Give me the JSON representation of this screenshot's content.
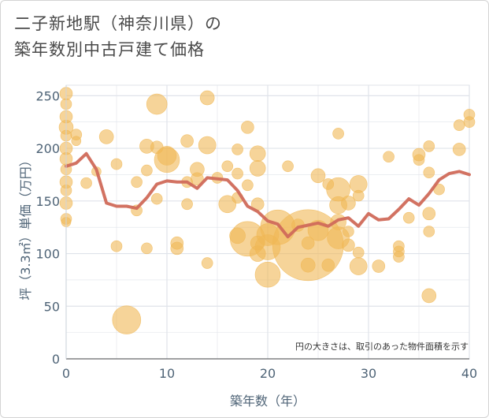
{
  "title": "二子新地駅（神奈川県）の\n築年数別中古戸建て価格",
  "colors": {
    "bubble": "#f0b855",
    "line": "#d06a5a",
    "grid": "#dfe3ea",
    "background": "#ffffff"
  },
  "chart_data": {
    "type": "scatter",
    "title": "二子新地駅（神奈川県）の築年数別中古戸建て価格",
    "xlabel": "築年数（年）",
    "ylabel": "坪（3.3㎡）単価（万円）",
    "xlim": [
      0,
      40
    ],
    "ylim": [
      0,
      260
    ],
    "xticks": [
      0,
      10,
      20,
      30,
      40
    ],
    "yticks": [
      0,
      50,
      100,
      150,
      200,
      250
    ],
    "grid": true,
    "annotation": "円の大きさは、取引のあった物件面積を示す",
    "bubbles": [
      {
        "x": 0,
        "y": 252,
        "s": 8
      },
      {
        "x": 0,
        "y": 242,
        "s": 7
      },
      {
        "x": 0,
        "y": 230,
        "s": 8
      },
      {
        "x": 0,
        "y": 220,
        "s": 9
      },
      {
        "x": 0,
        "y": 212,
        "s": 7
      },
      {
        "x": 0,
        "y": 200,
        "s": 8
      },
      {
        "x": 0,
        "y": 190,
        "s": 8
      },
      {
        "x": 0,
        "y": 180,
        "s": 7
      },
      {
        "x": 0,
        "y": 168,
        "s": 8
      },
      {
        "x": 0,
        "y": 160,
        "s": 7
      },
      {
        "x": 0,
        "y": 148,
        "s": 8
      },
      {
        "x": 0,
        "y": 133,
        "s": 7
      },
      {
        "x": 0,
        "y": 130,
        "s": 6
      },
      {
        "x": 1,
        "y": 213,
        "s": 7
      },
      {
        "x": 1,
        "y": 207,
        "s": 6
      },
      {
        "x": 2,
        "y": 167,
        "s": 7
      },
      {
        "x": 3,
        "y": 178,
        "s": 6
      },
      {
        "x": 4,
        "y": 211,
        "s": 9
      },
      {
        "x": 5,
        "y": 185,
        "s": 7
      },
      {
        "x": 5,
        "y": 107,
        "s": 7
      },
      {
        "x": 6,
        "y": 37,
        "s": 18
      },
      {
        "x": 7,
        "y": 168,
        "s": 7
      },
      {
        "x": 7,
        "y": 141,
        "s": 7
      },
      {
        "x": 8,
        "y": 202,
        "s": 9
      },
      {
        "x": 8,
        "y": 179,
        "s": 7
      },
      {
        "x": 8,
        "y": 105,
        "s": 7
      },
      {
        "x": 9,
        "y": 242,
        "s": 13
      },
      {
        "x": 9,
        "y": 201,
        "s": 8
      },
      {
        "x": 9,
        "y": 152,
        "s": 7
      },
      {
        "x": 10,
        "y": 193,
        "s": 12
      },
      {
        "x": 10,
        "y": 189,
        "s": 16
      },
      {
        "x": 11,
        "y": 110,
        "s": 8
      },
      {
        "x": 11,
        "y": 105,
        "s": 8
      },
      {
        "x": 12,
        "y": 207,
        "s": 8
      },
      {
        "x": 12,
        "y": 168,
        "s": 7
      },
      {
        "x": 12,
        "y": 147,
        "s": 7
      },
      {
        "x": 13,
        "y": 180,
        "s": 9
      },
      {
        "x": 13,
        "y": 171,
        "s": 8
      },
      {
        "x": 14,
        "y": 248,
        "s": 9
      },
      {
        "x": 14,
        "y": 203,
        "s": 11
      },
      {
        "x": 14,
        "y": 91,
        "s": 7
      },
      {
        "x": 15,
        "y": 172,
        "s": 7
      },
      {
        "x": 16,
        "y": 183,
        "s": 7
      },
      {
        "x": 16,
        "y": 147,
        "s": 11
      },
      {
        "x": 17,
        "y": 199,
        "s": 7
      },
      {
        "x": 17,
        "y": 176,
        "s": 7
      },
      {
        "x": 17,
        "y": 153,
        "s": 7
      },
      {
        "x": 17,
        "y": 117,
        "s": 10
      },
      {
        "x": 18,
        "y": 220,
        "s": 8
      },
      {
        "x": 18,
        "y": 165,
        "s": 7
      },
      {
        "x": 18,
        "y": 114,
        "s": 22
      },
      {
        "x": 19,
        "y": 195,
        "s": 10
      },
      {
        "x": 19,
        "y": 181,
        "s": 10
      },
      {
        "x": 19,
        "y": 147,
        "s": 8
      },
      {
        "x": 19,
        "y": 110,
        "s": 9
      },
      {
        "x": 19,
        "y": 100,
        "s": 10
      },
      {
        "x": 20,
        "y": 80,
        "s": 16
      },
      {
        "x": 20,
        "y": 118,
        "s": 14
      },
      {
        "x": 20,
        "y": 106,
        "s": 16
      },
      {
        "x": 21,
        "y": 125,
        "s": 22
      },
      {
        "x": 22,
        "y": 183,
        "s": 7
      },
      {
        "x": 23,
        "y": 127,
        "s": 8
      },
      {
        "x": 24,
        "y": 110,
        "s": 8
      },
      {
        "x": 24,
        "y": 108,
        "s": 45
      },
      {
        "x": 24,
        "y": 89,
        "s": 9
      },
      {
        "x": 25,
        "y": 174,
        "s": 9
      },
      {
        "x": 25,
        "y": 122,
        "s": 13
      },
      {
        "x": 26,
        "y": 166,
        "s": 7
      },
      {
        "x": 26,
        "y": 89,
        "s": 8
      },
      {
        "x": 27,
        "y": 214,
        "s": 7
      },
      {
        "x": 27,
        "y": 161,
        "s": 15
      },
      {
        "x": 27,
        "y": 146,
        "s": 11
      },
      {
        "x": 27,
        "y": 130,
        "s": 10
      },
      {
        "x": 27,
        "y": 115,
        "s": 14
      },
      {
        "x": 28,
        "y": 148,
        "s": 9
      },
      {
        "x": 28,
        "y": 121,
        "s": 7
      },
      {
        "x": 28,
        "y": 108,
        "s": 8
      },
      {
        "x": 29,
        "y": 166,
        "s": 11
      },
      {
        "x": 29,
        "y": 155,
        "s": 7
      },
      {
        "x": 29,
        "y": 101,
        "s": 7
      },
      {
        "x": 29,
        "y": 88,
        "s": 11
      },
      {
        "x": 31,
        "y": 88,
        "s": 8
      },
      {
        "x": 32,
        "y": 192,
        "s": 7
      },
      {
        "x": 33,
        "y": 107,
        "s": 7
      },
      {
        "x": 33,
        "y": 102,
        "s": 7
      },
      {
        "x": 33,
        "y": 97,
        "s": 7
      },
      {
        "x": 34,
        "y": 134,
        "s": 7
      },
      {
        "x": 35,
        "y": 194,
        "s": 8
      },
      {
        "x": 35,
        "y": 189,
        "s": 7
      },
      {
        "x": 36,
        "y": 202,
        "s": 7
      },
      {
        "x": 36,
        "y": 177,
        "s": 7
      },
      {
        "x": 36,
        "y": 138,
        "s": 8
      },
      {
        "x": 36,
        "y": 121,
        "s": 7
      },
      {
        "x": 36,
        "y": 60,
        "s": 9
      },
      {
        "x": 37,
        "y": 161,
        "s": 7
      },
      {
        "x": 39,
        "y": 222,
        "s": 7
      },
      {
        "x": 39,
        "y": 199,
        "s": 8
      },
      {
        "x": 40,
        "y": 232,
        "s": 7
      },
      {
        "x": 40,
        "y": 225,
        "s": 7
      }
    ],
    "series": [
      {
        "x": [
          0,
          1,
          2,
          3,
          4,
          5,
          6,
          7,
          8,
          9,
          10,
          11,
          12,
          13,
          14,
          15,
          16,
          17,
          18,
          19,
          20,
          21,
          22,
          23,
          24,
          25,
          26,
          27,
          28,
          29,
          30,
          31,
          32,
          33,
          34,
          35,
          36,
          37,
          38,
          39,
          40
        ],
        "values": [
          183,
          186,
          195,
          180,
          148,
          145,
          145,
          143,
          153,
          166,
          169,
          168,
          168,
          162,
          172,
          171,
          170,
          160,
          145,
          140,
          131,
          128,
          116,
          125,
          127,
          129,
          126,
          132,
          134,
          126,
          138,
          132,
          133,
          142,
          152,
          146,
          157,
          170,
          176,
          178,
          175
        ]
      }
    ]
  }
}
